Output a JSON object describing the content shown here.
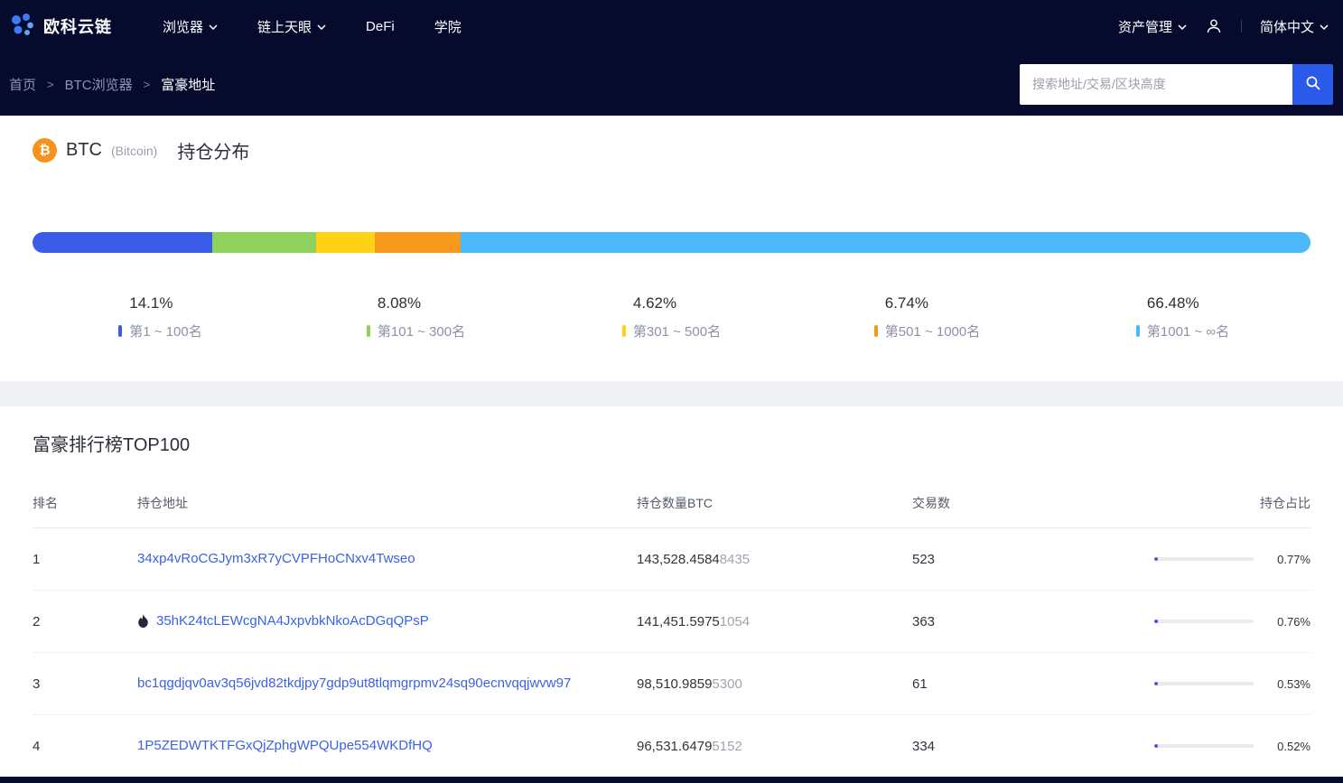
{
  "navbar": {
    "brand": "欧科云链",
    "items": [
      {
        "label": "浏览器",
        "dropdown": true
      },
      {
        "label": "链上天眼",
        "dropdown": true
      },
      {
        "label": "DeFi",
        "dropdown": false
      },
      {
        "label": "学院",
        "dropdown": false
      }
    ],
    "right": [
      {
        "label": "资产管理",
        "dropdown": true
      },
      {
        "label": "简体中文",
        "dropdown": true
      }
    ]
  },
  "breadcrumb": {
    "items": [
      "首页",
      "BTC浏览器",
      "富豪地址"
    ],
    "separator": ">"
  },
  "search": {
    "placeholder": "搜索地址/交易/区块高度"
  },
  "distribution": {
    "coin": "BTC",
    "coin_full": "(Bitcoin)",
    "title": "持仓分布",
    "segments": [
      {
        "pct": "14.1%",
        "label": "第1 ~ 100名",
        "value": 14.1,
        "color": "#3a5ce8"
      },
      {
        "pct": "8.08%",
        "label": "第101 ~ 300名",
        "value": 8.08,
        "color": "#8fd15e"
      },
      {
        "pct": "4.62%",
        "label": "第301 ~ 500名",
        "value": 4.62,
        "color": "#ffd215"
      },
      {
        "pct": "6.74%",
        "label": "第501 ~ 1000名",
        "value": 6.74,
        "color": "#f8991d"
      },
      {
        "pct": "66.48%",
        "label": "第1001 ~ ∞名",
        "value": 66.48,
        "color": "#4cb7f9"
      }
    ]
  },
  "ranking": {
    "title": "富豪排行榜TOP100",
    "columns": [
      "排名",
      "持仓地址",
      "持仓数量BTC",
      "交易数",
      "持仓占比"
    ],
    "rows": [
      {
        "rank": "1",
        "flame": false,
        "address": "34xp4vRoCGJym3xR7yCVPFHoCNxv4Twseo",
        "amount_main": "143,528.4584",
        "amount_tail": "8435",
        "tx": "523",
        "share": "0.77%",
        "share_value": 0.77
      },
      {
        "rank": "2",
        "flame": true,
        "address": "35hK24tcLEWcgNA4JxpvbkNkoAcDGqQPsP",
        "amount_main": "141,451.5975",
        "amount_tail": "1054",
        "tx": "363",
        "share": "0.76%",
        "share_value": 0.76
      },
      {
        "rank": "3",
        "flame": false,
        "address": "bc1qgdjqv0av3q56jvd82tkdjpy7gdp9ut8tlqmgrpmv24sq90ecnvqqjwvw97",
        "amount_main": "98,510.9859",
        "amount_tail": "5300",
        "tx": "61",
        "share": "0.53%",
        "share_value": 0.53
      },
      {
        "rank": "4",
        "flame": false,
        "address": "1P5ZEDWTKTFGxQjZphgWPQUpe554WKDfHQ",
        "amount_main": "96,531.6479",
        "amount_tail": "5152",
        "tx": "334",
        "share": "0.52%",
        "share_value": 0.52
      }
    ]
  }
}
